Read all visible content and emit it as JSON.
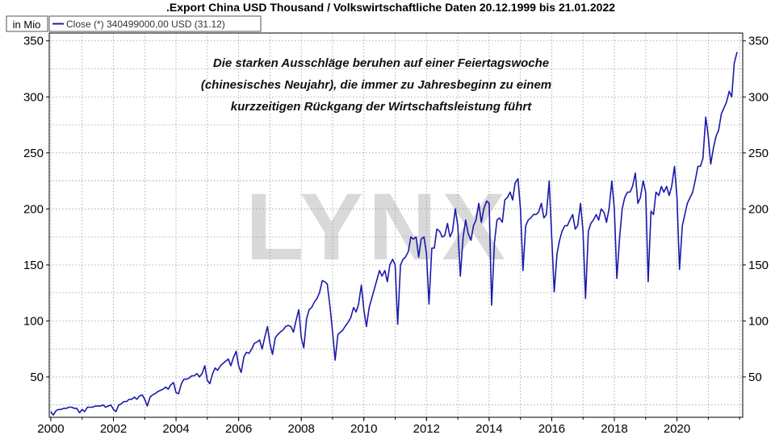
{
  "chart_data": {
    "type": "line",
    "title": ".Export China USD Thousand / Volkswirtschaftliche Daten 20.12.1999 bis 21.01.2022",
    "unit_label": "in Mio",
    "legend": "Close (*) 340499000,00 USD (31.12)",
    "annotation": [
      "Die starken Ausschläge beruhen auf einer Feiertagswoche",
      "(chinesisches Neujahr), die immer zu Jahresbeginn zu einem",
      "kurzzeitigen Rückgang der Wirtschaftsleistung führt"
    ],
    "watermark": "LYNX",
    "x_ticks": [
      "2000",
      "2002",
      "2004",
      "2006",
      "2008",
      "2010",
      "2012",
      "2014",
      "2016",
      "2018",
      "2020"
    ],
    "y_ticks": [
      50,
      100,
      150,
      200,
      250,
      300,
      350
    ],
    "xlim": [
      1999.95,
      2022.1
    ],
    "ylim": [
      14,
      357
    ],
    "grid": true,
    "line_color": "#1a1aaa",
    "series": [
      {
        "x": [
          2000.0,
          2000.08,
          2000.17,
          2000.25,
          2000.33,
          2000.42,
          2000.5,
          2000.58,
          2000.67,
          2000.75,
          2000.83,
          2000.92,
          2001.0,
          2001.08,
          2001.17,
          2001.25,
          2001.33,
          2001.42,
          2001.5,
          2001.58,
          2001.67,
          2001.75,
          2001.83,
          2001.92,
          2002.0,
          2002.08,
          2002.17,
          2002.25,
          2002.33,
          2002.42,
          2002.5,
          2002.58,
          2002.67,
          2002.75,
          2002.83,
          2002.92,
          2003.0,
          2003.08,
          2003.17,
          2003.25,
          2003.33,
          2003.42,
          2003.5,
          2003.58,
          2003.67,
          2003.75,
          2003.83,
          2003.92,
          2004.0,
          2004.08,
          2004.17,
          2004.25,
          2004.33,
          2004.42,
          2004.5,
          2004.58,
          2004.67,
          2004.75,
          2004.83,
          2004.92,
          2005.0,
          2005.08,
          2005.17,
          2005.25,
          2005.33,
          2005.42,
          2005.5,
          2005.58,
          2005.67,
          2005.75,
          2005.83,
          2005.92,
          2006.0,
          2006.08,
          2006.17,
          2006.25,
          2006.33,
          2006.42,
          2006.5,
          2006.58,
          2006.67,
          2006.75,
          2006.83,
          2006.92,
          2007.0,
          2007.08,
          2007.17,
          2007.25,
          2007.33,
          2007.42,
          2007.5,
          2007.58,
          2007.67,
          2007.75,
          2007.83,
          2007.92,
          2008.0,
          2008.08,
          2008.17,
          2008.25,
          2008.33,
          2008.42,
          2008.5,
          2008.58,
          2008.67,
          2008.75,
          2008.83,
          2008.92,
          2009.0,
          2009.08,
          2009.17,
          2009.25,
          2009.33,
          2009.42,
          2009.5,
          2009.58,
          2009.67,
          2009.75,
          2009.83,
          2009.92,
          2010.0,
          2010.08,
          2010.17,
          2010.25,
          2010.33,
          2010.42,
          2010.5,
          2010.58,
          2010.67,
          2010.75,
          2010.83,
          2010.92,
          2011.0,
          2011.08,
          2011.17,
          2011.25,
          2011.33,
          2011.42,
          2011.5,
          2011.58,
          2011.67,
          2011.75,
          2011.83,
          2011.92,
          2012.0,
          2012.08,
          2012.17,
          2012.25,
          2012.33,
          2012.42,
          2012.5,
          2012.58,
          2012.67,
          2012.75,
          2012.83,
          2012.92,
          2013.0,
          2013.08,
          2013.17,
          2013.25,
          2013.33,
          2013.42,
          2013.5,
          2013.58,
          2013.67,
          2013.75,
          2013.83,
          2013.92,
          2014.0,
          2014.08,
          2014.17,
          2014.25,
          2014.33,
          2014.42,
          2014.5,
          2014.58,
          2014.67,
          2014.75,
          2014.83,
          2014.92,
          2015.0,
          2015.08,
          2015.17,
          2015.25,
          2015.33,
          2015.42,
          2015.5,
          2015.58,
          2015.67,
          2015.75,
          2015.83,
          2015.92,
          2016.0,
          2016.08,
          2016.17,
          2016.25,
          2016.33,
          2016.42,
          2016.5,
          2016.58,
          2016.67,
          2016.75,
          2016.83,
          2016.92,
          2017.0,
          2017.08,
          2017.17,
          2017.25,
          2017.33,
          2017.42,
          2017.5,
          2017.58,
          2017.67,
          2017.75,
          2017.83,
          2017.92,
          2018.0,
          2018.08,
          2018.17,
          2018.25,
          2018.33,
          2018.42,
          2018.5,
          2018.58,
          2018.67,
          2018.75,
          2018.83,
          2018.92,
          2019.0,
          2019.08,
          2019.17,
          2019.25,
          2019.33,
          2019.42,
          2019.5,
          2019.58,
          2019.67,
          2019.75,
          2019.83,
          2019.92,
          2020.0,
          2020.08,
          2020.17,
          2020.25,
          2020.33,
          2020.42,
          2020.5,
          2020.58,
          2020.67,
          2020.75,
          2020.83,
          2020.92,
          2021.0,
          2021.08,
          2021.17,
          2021.25,
          2021.33,
          2021.42,
          2021.5,
          2021.58,
          2021.67,
          2021.75,
          2021.83,
          2021.92
        ],
        "y": [
          19,
          16,
          20,
          21,
          21,
          22,
          22,
          23,
          23,
          22,
          22,
          18,
          21,
          19,
          23,
          23,
          23,
          24,
          24,
          24,
          25,
          23,
          24,
          25,
          21,
          19,
          25,
          26,
          28,
          28,
          30,
          30,
          32,
          30,
          33,
          34,
          30,
          24,
          32,
          34,
          35,
          37,
          38,
          39,
          41,
          39,
          43,
          45,
          36,
          35,
          44,
          48,
          48,
          49,
          51,
          51,
          53,
          50,
          53,
          60,
          47,
          44,
          53,
          58,
          56,
          60,
          62,
          64,
          66,
          60,
          67,
          73,
          60,
          54,
          68,
          72,
          71,
          75,
          80,
          81,
          83,
          75,
          85,
          95,
          80,
          70,
          85,
          88,
          90,
          92,
          95,
          96,
          95,
          90,
          100,
          110,
          85,
          76,
          102,
          110,
          112,
          117,
          120,
          125,
          136,
          135,
          133,
          112,
          90,
          65,
          88,
          90,
          92,
          96,
          99,
          103,
          112,
          108,
          115,
          132,
          110,
          95,
          112,
          120,
          128,
          137,
          145,
          140,
          145,
          135,
          150,
          155,
          150,
          97,
          150,
          155,
          157,
          162,
          175,
          173,
          175,
          157,
          173,
          175,
          160,
          115,
          165,
          165,
          182,
          180,
          175,
          176,
          187,
          175,
          180,
          200,
          185,
          140,
          175,
          190,
          178,
          172,
          185,
          190,
          205,
          188,
          200,
          207,
          205,
          114,
          170,
          190,
          192,
          188,
          208,
          210,
          215,
          208,
          223,
          227,
          200,
          145,
          185,
          190,
          192,
          195,
          195,
          197,
          205,
          192,
          195,
          225,
          175,
          126,
          160,
          172,
          180,
          185,
          185,
          190,
          195,
          182,
          185,
          205,
          180,
          120,
          180,
          187,
          190,
          195,
          190,
          200,
          197,
          188,
          200,
          225,
          200,
          138,
          175,
          200,
          210,
          215,
          215,
          220,
          232,
          205,
          210,
          225,
          215,
          135,
          198,
          195,
          215,
          212,
          220,
          215,
          220,
          212,
          220,
          238,
          210,
          146,
          185,
          195,
          205,
          210,
          215,
          225,
          238,
          238,
          245,
          282,
          265,
          240,
          255,
          265,
          270,
          285,
          290,
          295,
          305,
          300,
          330,
          340
        ]
      }
    ]
  }
}
